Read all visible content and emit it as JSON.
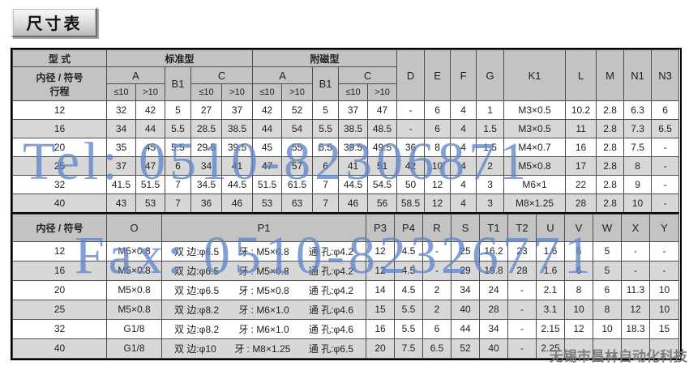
{
  "title": "尺寸表",
  "watermarks": {
    "tel": "Tel: 0510-82306871",
    "fax": "Fax: 0510-82326771",
    "company": "无锡市昌林自动化科技",
    "blue_color": "#6085c9",
    "company_color": "#767676"
  },
  "colors": {
    "header_bg": "#c3c3c3",
    "alt_row_bg": "#d8d8d8",
    "grid_line": "#4d4d4d"
  },
  "section1": {
    "headers": {
      "type": "型 式",
      "standard": "标准型",
      "magnetic": "附磁型",
      "bore_label": "内径 / 符号",
      "stroke_label": "行程",
      "a": "A",
      "b1": "B1",
      "c": "C",
      "le10": "≤10",
      "gt10": ">10",
      "tail": [
        "D",
        "E",
        "F",
        "G",
        "K1",
        "L",
        "M",
        "N1",
        "N3"
      ]
    },
    "rows": [
      {
        "bore": "12",
        "std": [
          "32",
          "42",
          "5",
          "27",
          "37"
        ],
        "mag": [
          "42",
          "52",
          "5",
          "37",
          "47"
        ],
        "tail": [
          "-",
          "6",
          "4",
          "1",
          "M3×0.5",
          "10.2",
          "2.8",
          "6.3",
          "6"
        ]
      },
      {
        "bore": "16",
        "std": [
          "34",
          "44",
          "5.5",
          "28.5",
          "38.5"
        ],
        "mag": [
          "44",
          "54",
          "5.5",
          "38.5",
          "48.5"
        ],
        "tail": [
          "-",
          "6",
          "4",
          "1.5",
          "M3×0.5",
          "11",
          "2.8",
          "7.3",
          "6.5"
        ]
      },
      {
        "bore": "20",
        "std": [
          "35",
          "45",
          "5.5",
          "29.5",
          "39.5"
        ],
        "mag": [
          "45",
          "55",
          "5.5",
          "39.5",
          "49.5"
        ],
        "tail": [
          "36",
          "8",
          "4",
          "1.5",
          "M4×0.7",
          "16",
          "2.8",
          "7.5",
          "-"
        ]
      },
      {
        "bore": "25",
        "std": [
          "37",
          "47",
          "6",
          "34",
          "41"
        ],
        "mag": [
          "47",
          "57",
          "6",
          "41",
          "51"
        ],
        "tail": [
          "42",
          "10",
          "4",
          "2",
          "M5×0.8",
          "17",
          "2.8",
          "8",
          "-"
        ]
      },
      {
        "bore": "32",
        "std": [
          "41.5",
          "51.5",
          "7",
          "34.5",
          "44.5"
        ],
        "mag": [
          "51.5",
          "61.5",
          "7",
          "44.5",
          "54.5"
        ],
        "tail": [
          "50",
          "12",
          "4",
          "3",
          "M6×1",
          "22",
          "2.8",
          "9",
          "-"
        ]
      },
      {
        "bore": "40",
        "std": [
          "43",
          "53",
          "7",
          "36",
          "46"
        ],
        "mag": [
          "53",
          "63",
          "7",
          "46",
          "56"
        ],
        "tail": [
          "58.5",
          "12",
          "4",
          "3",
          "M8×1.25",
          "28",
          "2.8",
          "10",
          "-"
        ]
      }
    ]
  },
  "section2": {
    "headers": [
      "内径 / 符号",
      "O",
      "P1",
      "P3",
      "P4",
      "R",
      "S",
      "T1",
      "T2",
      "U",
      "V",
      "W",
      "X",
      "Y"
    ],
    "rows": [
      {
        "bore": "12",
        "o": "M5×0.8",
        "p1": [
          "双 边:φ6.5",
          "牙 : M5×0.8",
          "通 孔:φ4.2"
        ],
        "vals": [
          "12",
          "4.5",
          "-",
          "25",
          "16.2",
          "23",
          "1.6",
          "6",
          "5",
          "-",
          "-"
        ]
      },
      {
        "bore": "16",
        "o": "M5×0.8",
        "p1": [
          "双 边:φ6.5",
          "牙 : M5×0.8",
          "通 孔:φ4.2"
        ],
        "vals": [
          "12",
          "4.5",
          "-",
          "29",
          "19.8",
          "28",
          "1.6",
          "6",
          "5",
          "-",
          "-"
        ]
      },
      {
        "bore": "20",
        "o": "M5×0.8",
        "p1": [
          "双 边:φ6.5",
          "牙 : M5×0.8",
          "通 孔:φ4.2"
        ],
        "vals": [
          "14",
          "4.5",
          "2",
          "34",
          "24",
          "-",
          "2.1",
          "8",
          "6",
          "11.3",
          "10"
        ]
      },
      {
        "bore": "25",
        "o": "M5×0.8",
        "p1": [
          "双 边:φ8.2",
          "牙 : M6×1.0",
          "通 孔:φ4.6"
        ],
        "vals": [
          "15",
          "5.5",
          "2",
          "40",
          "28",
          "-",
          "3.1",
          "10",
          "8",
          "12",
          "10"
        ]
      },
      {
        "bore": "32",
        "o": "G1/8",
        "p1": [
          "双 边:φ8.2",
          "牙 : M6×1.0",
          "通 孔:φ4.6"
        ],
        "vals": [
          "16",
          "5.5",
          "6",
          "44",
          "34",
          "-",
          "2.15",
          "12",
          "10",
          "18.3",
          "15"
        ]
      },
      {
        "bore": "40",
        "o": "G1/8",
        "p1": [
          "双 边:φ10",
          "牙 : M8×1.25",
          "通 孔:φ6.5"
        ],
        "vals": [
          "20",
          "7.5",
          "6.5",
          "52",
          "40",
          "-",
          "2.25",
          "",
          "",
          "",
          ""
        ]
      }
    ]
  }
}
